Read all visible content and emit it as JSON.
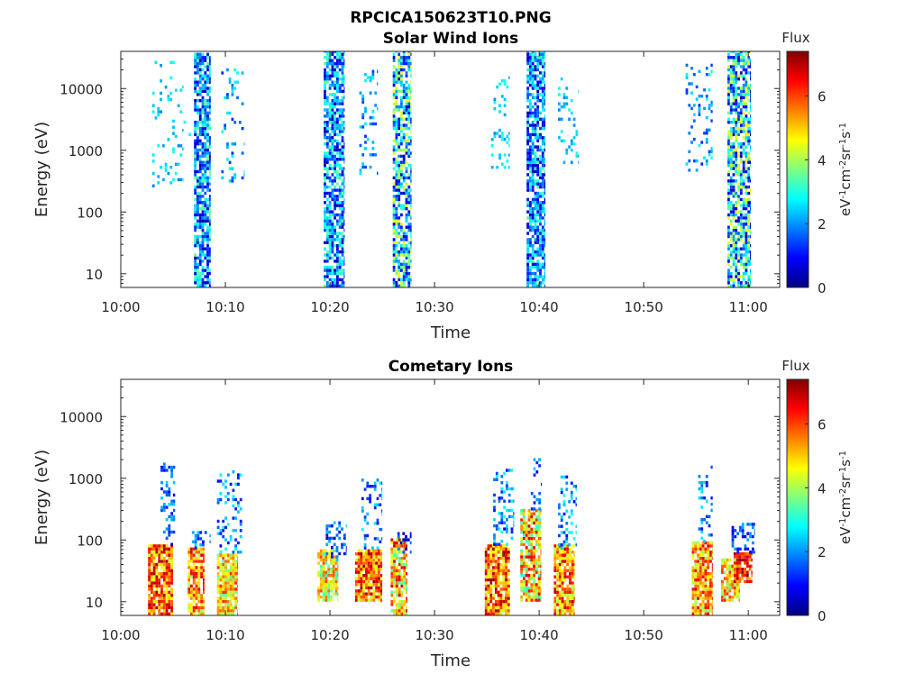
{
  "figure_title": "RPCICA150623T10.PNG",
  "colorscale": [
    "#00007f",
    "#0000ff",
    "#007fff",
    "#00ffff",
    "#7fff7f",
    "#ffff00",
    "#ff7f00",
    "#ff0000",
    "#7f0000"
  ],
  "chart_data": [
    {
      "type": "heatmap",
      "title": "Solar Wind Ions",
      "xlabel": "Time",
      "ylabel": "Energy (eV)",
      "x_ticks": [
        "10:00",
        "10:10",
        "10:20",
        "10:30",
        "10:40",
        "10:50",
        "11:00"
      ],
      "y_ticks": [
        "10",
        "100",
        "1000",
        "10000"
      ],
      "y_scale": "log",
      "ylim": [
        6,
        40000
      ],
      "xlim_minutes": [
        0,
        63
      ],
      "colorbar": {
        "title": "Flux",
        "label": "eV-1cm-2sr-1s-1",
        "ticks": [
          "0",
          "2",
          "4",
          "6"
        ],
        "range": [
          0,
          7.4
        ]
      },
      "bursts": [
        {
          "t_start": 3.0,
          "t_end": 6.0,
          "e_min": 250,
          "e_max": 25000,
          "density": 0.12,
          "low": 1.8,
          "high": 3.0
        },
        {
          "t_start": 6.0,
          "t_end": 7.4,
          "e_min": 1200,
          "e_max": 3000,
          "density": 0.1,
          "low": 2.0,
          "high": 3.0
        },
        {
          "t_start": 7.0,
          "t_end": 8.6,
          "e_min": 6,
          "e_max": 35000,
          "density": 0.75,
          "low": 0.3,
          "high": 3.6
        },
        {
          "t_start": 9.6,
          "t_end": 11.8,
          "e_min": 300,
          "e_max": 20000,
          "density": 0.15,
          "low": 1.2,
          "high": 3.0
        },
        {
          "t_start": 19.4,
          "t_end": 21.4,
          "e_min": 6,
          "e_max": 40000,
          "density": 0.72,
          "low": 0.3,
          "high": 3.6
        },
        {
          "t_start": 22.8,
          "t_end": 24.6,
          "e_min": 400,
          "e_max": 20000,
          "density": 0.18,
          "low": 1.2,
          "high": 3.0
        },
        {
          "t_start": 26.0,
          "t_end": 27.8,
          "e_min": 6,
          "e_max": 40000,
          "density": 0.72,
          "low": 0.3,
          "high": 4.8
        },
        {
          "t_start": 35.4,
          "t_end": 37.2,
          "e_min": 500,
          "e_max": 15000,
          "density": 0.18,
          "low": 1.8,
          "high": 3.0
        },
        {
          "t_start": 38.8,
          "t_end": 40.6,
          "e_min": 6,
          "e_max": 40000,
          "density": 0.75,
          "low": 0.3,
          "high": 3.4
        },
        {
          "t_start": 41.8,
          "t_end": 43.8,
          "e_min": 600,
          "e_max": 15000,
          "density": 0.2,
          "low": 1.8,
          "high": 3.0
        },
        {
          "t_start": 54.0,
          "t_end": 56.6,
          "e_min": 400,
          "e_max": 25000,
          "density": 0.18,
          "low": 1.2,
          "high": 3.0
        },
        {
          "t_start": 58.0,
          "t_end": 60.2,
          "e_min": 6,
          "e_max": 40000,
          "density": 0.72,
          "low": 0.3,
          "high": 4.8
        }
      ]
    },
    {
      "type": "heatmap",
      "title": "Cometary Ions",
      "xlabel": "Time",
      "ylabel": "Energy (eV)",
      "x_ticks": [
        "10:00",
        "10:10",
        "10:20",
        "10:30",
        "10:40",
        "10:50",
        "11:00"
      ],
      "y_ticks": [
        "10",
        "100",
        "1000",
        "10000"
      ],
      "y_scale": "log",
      "ylim": [
        6,
        40000
      ],
      "xlim_minutes": [
        0,
        63
      ],
      "colorbar": {
        "title": "Flux",
        "label": "eV-1cm-2sr-1s-1",
        "ticks": [
          "0",
          "2",
          "4",
          "6"
        ],
        "range": [
          0,
          7.4
        ]
      },
      "bursts": [
        {
          "t_start": 2.6,
          "t_end": 5.0,
          "e_min": 6,
          "e_max": 80,
          "density": 0.9,
          "low": 4.2,
          "high": 7.2
        },
        {
          "t_start": 3.8,
          "t_end": 5.2,
          "e_min": 80,
          "e_max": 1600,
          "density": 0.25,
          "low": 0.8,
          "high": 2.5
        },
        {
          "t_start": 6.4,
          "t_end": 8.0,
          "e_min": 6,
          "e_max": 70,
          "density": 0.85,
          "low": 3.8,
          "high": 6.8
        },
        {
          "t_start": 6.8,
          "t_end": 8.6,
          "e_min": 70,
          "e_max": 130,
          "density": 0.35,
          "low": 0.5,
          "high": 2.5
        },
        {
          "t_start": 9.2,
          "t_end": 11.2,
          "e_min": 6,
          "e_max": 60,
          "density": 0.85,
          "low": 3.5,
          "high": 6.2
        },
        {
          "t_start": 9.2,
          "t_end": 11.6,
          "e_min": 60,
          "e_max": 1300,
          "density": 0.25,
          "low": 0.8,
          "high": 3.0
        },
        {
          "t_start": 18.8,
          "t_end": 20.8,
          "e_min": 10,
          "e_max": 70,
          "density": 0.85,
          "low": 3.2,
          "high": 6.0
        },
        {
          "t_start": 19.6,
          "t_end": 21.6,
          "e_min": 40,
          "e_max": 200,
          "density": 0.35,
          "low": 0.5,
          "high": 2.5
        },
        {
          "t_start": 22.4,
          "t_end": 25.0,
          "e_min": 10,
          "e_max": 70,
          "density": 0.88,
          "low": 4.0,
          "high": 7.2
        },
        {
          "t_start": 23.0,
          "t_end": 25.0,
          "e_min": 70,
          "e_max": 1000,
          "density": 0.25,
          "low": 0.8,
          "high": 3.0
        },
        {
          "t_start": 25.8,
          "t_end": 27.4,
          "e_min": 6,
          "e_max": 100,
          "density": 0.85,
          "low": 3.2,
          "high": 7.0
        },
        {
          "t_start": 26.2,
          "t_end": 27.8,
          "e_min": 60,
          "e_max": 130,
          "density": 0.4,
          "low": 0.3,
          "high": 2.2
        },
        {
          "t_start": 34.8,
          "t_end": 37.2,
          "e_min": 6,
          "e_max": 80,
          "density": 0.9,
          "low": 4.2,
          "high": 7.2
        },
        {
          "t_start": 35.6,
          "t_end": 37.6,
          "e_min": 80,
          "e_max": 1300,
          "density": 0.25,
          "low": 0.8,
          "high": 3.0
        },
        {
          "t_start": 38.2,
          "t_end": 40.2,
          "e_min": 10,
          "e_max": 300,
          "density": 0.8,
          "low": 3.0,
          "high": 6.8
        },
        {
          "t_start": 39.2,
          "t_end": 40.2,
          "e_min": 300,
          "e_max": 2200,
          "density": 0.2,
          "low": 0.8,
          "high": 2.5
        },
        {
          "t_start": 41.4,
          "t_end": 43.4,
          "e_min": 6,
          "e_max": 80,
          "density": 0.85,
          "low": 4.0,
          "high": 7.0
        },
        {
          "t_start": 41.8,
          "t_end": 43.6,
          "e_min": 70,
          "e_max": 1100,
          "density": 0.25,
          "low": 0.8,
          "high": 3.0
        },
        {
          "t_start": 54.6,
          "t_end": 56.6,
          "e_min": 6,
          "e_max": 90,
          "density": 0.88,
          "low": 3.8,
          "high": 6.8
        },
        {
          "t_start": 55.2,
          "t_end": 56.6,
          "e_min": 90,
          "e_max": 1500,
          "density": 0.25,
          "low": 0.8,
          "high": 2.8
        },
        {
          "t_start": 57.4,
          "t_end": 59.2,
          "e_min": 10,
          "e_max": 50,
          "density": 0.85,
          "low": 3.5,
          "high": 6.2
        },
        {
          "t_start": 58.6,
          "t_end": 60.4,
          "e_min": 20,
          "e_max": 60,
          "density": 0.8,
          "low": 5.0,
          "high": 7.4
        },
        {
          "t_start": 58.4,
          "t_end": 60.6,
          "e_min": 60,
          "e_max": 180,
          "density": 0.35,
          "low": 0.3,
          "high": 2.2
        }
      ]
    }
  ]
}
